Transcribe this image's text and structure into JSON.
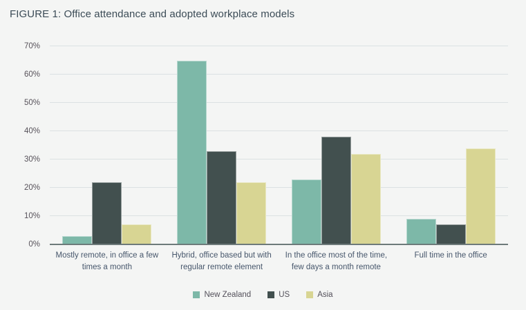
{
  "figure_label": "FIGURE 1",
  "chart_data": {
    "type": "bar",
    "title": "FIGURE 1: Office attendance and adopted workplace models",
    "categories": [
      "Mostly remote, in office a few times a month",
      "Hybrid, office based but with regular remote element",
      "In the office most of the time, few days a month remote",
      "Full time in the office"
    ],
    "series": [
      {
        "name": "New Zealand",
        "color": "#7db8a8",
        "values": [
          3,
          65,
          23,
          9
        ]
      },
      {
        "name": "US",
        "color": "#42504f",
        "values": [
          22,
          33,
          38,
          7
        ]
      },
      {
        "name": "Asia",
        "color": "#d8d593",
        "values": [
          7,
          22,
          32,
          34
        ]
      }
    ],
    "xlabel": "",
    "ylabel": "",
    "ylim": [
      0,
      70
    ],
    "y_ticks": [
      "0%",
      "10%",
      "20%",
      "30%",
      "40%",
      "50%",
      "60%",
      "70%"
    ],
    "grid": true,
    "legend_position": "bottom"
  },
  "colors": {
    "background": "#f4f5f4",
    "gridline": "#dbe1e2",
    "axis_line": "#6d7a7a",
    "title_text": "#3b4b56",
    "tick_text": "#57525a",
    "category_text": "#46566b",
    "legend_text": "#53505a"
  }
}
